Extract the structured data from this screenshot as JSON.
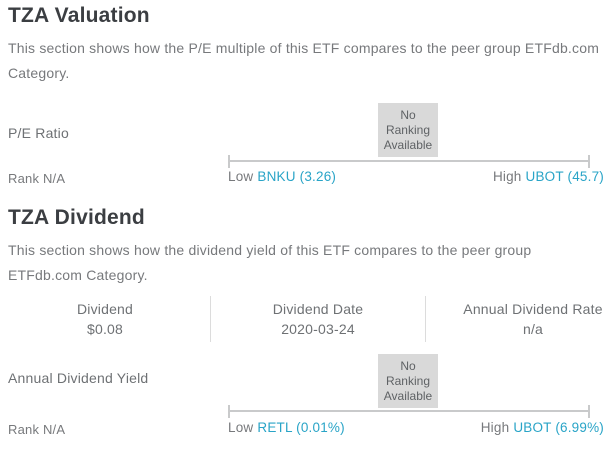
{
  "colors": {
    "accent_teal": "#29a4c7",
    "heading": "#3b3e42",
    "body_text": "#77797c",
    "badge_bg": "#d9d9d9",
    "slider_gray": "#c9cacb",
    "divider": "#dcdcdc"
  },
  "valuation": {
    "title": "TZA Valuation",
    "description": "This section shows how the P/E multiple of this ETF compares to the peer group ETFdb.com Category.",
    "metric_label": "P/E Ratio",
    "no_ranking_text": "No\nRanking\nAvailable",
    "rank_label": "Rank N/A",
    "range": {
      "low_prefix": "Low",
      "low_link": "BNKU (3.26)",
      "high_prefix": "High",
      "high_link": "UBOT (45.7)"
    }
  },
  "dividend": {
    "title": "TZA Dividend",
    "description": "This section shows how the dividend yield of this ETF compares to the peer group ETFdb.com Category.",
    "table": {
      "columns": [
        {
          "header": "Dividend",
          "value": "$0.08"
        },
        {
          "header": "Dividend Date",
          "value": "2020-03-24"
        },
        {
          "header": "Annual Dividend Rate",
          "value": "n/a"
        }
      ]
    },
    "metric_label": "Annual Dividend Yield",
    "no_ranking_text": "No\nRanking\nAvailable",
    "rank_label": "Rank N/A",
    "range": {
      "low_prefix": "Low",
      "low_link": "RETL (0.01%)",
      "high_prefix": "High",
      "high_link": "UBOT (6.99%)"
    }
  }
}
